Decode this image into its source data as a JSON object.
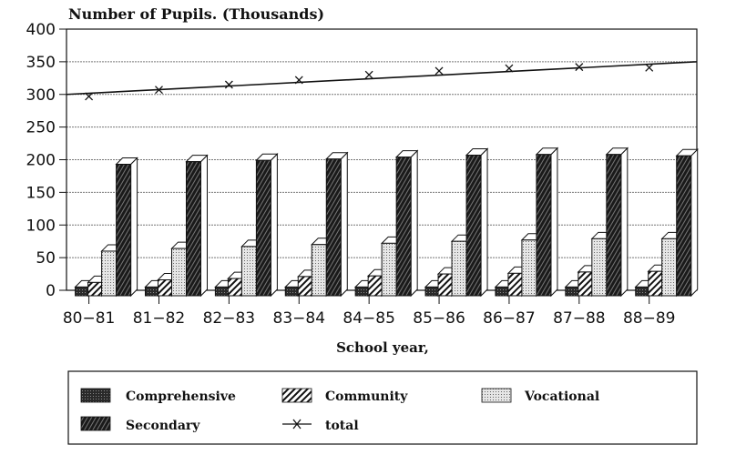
{
  "chart_data": {
    "type": "bar",
    "title": "Number of Pupils. (Thousands)",
    "xlabel": "School year,",
    "ylabel": "Number of Pupils. (Thousands)",
    "ylim": [
      0,
      400
    ],
    "yticks": [
      "0",
      "50",
      "100",
      "150",
      "200",
      "250",
      "300",
      "350",
      "400"
    ],
    "grid": true,
    "legend_position": "bottom",
    "categories": [
      "80-81",
      "81-82",
      "82-83",
      "83-84",
      "84-85",
      "85-86",
      "86-87",
      "87-88",
      "88-89"
    ],
    "series": [
      {
        "name": "Comprehensive",
        "kind": "bar",
        "pattern": "dense-dots",
        "values": [
          5,
          5,
          5,
          5,
          5,
          5,
          5,
          5,
          5
        ]
      },
      {
        "name": "Community",
        "kind": "bar",
        "pattern": "diagonal-hatch",
        "values": [
          12,
          16,
          18,
          21,
          22,
          25,
          26,
          28,
          29
        ]
      },
      {
        "name": "Vocational",
        "kind": "bar",
        "pattern": "light-dots",
        "values": [
          60,
          64,
          67,
          70,
          72,
          75,
          77,
          79,
          79
        ]
      },
      {
        "name": "Secondary",
        "kind": "bar",
        "pattern": "dark-hatch",
        "values": [
          193,
          197,
          199,
          201,
          204,
          207,
          208,
          208,
          206
        ]
      },
      {
        "name": "total",
        "kind": "line-markers",
        "marker": "x",
        "values": [
          297,
          307,
          315,
          322,
          330,
          336,
          340,
          342,
          341
        ],
        "trend": [
          300,
          350
        ]
      }
    ]
  }
}
